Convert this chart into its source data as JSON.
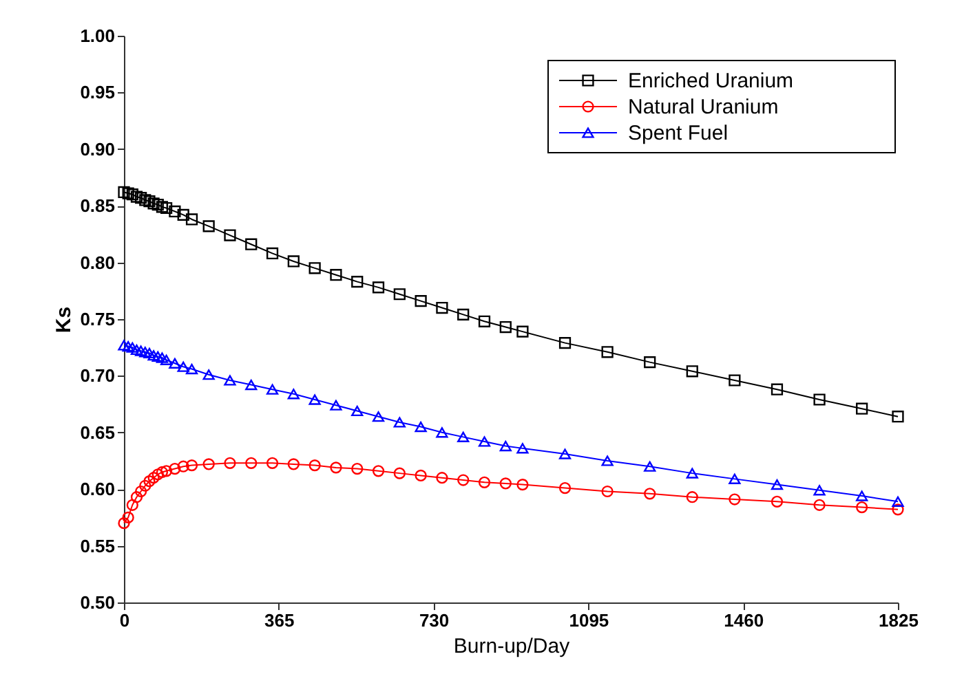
{
  "chart_data": {
    "type": "line",
    "xlabel": "Burn-up/Day",
    "ylabel": "Ks",
    "x": [
      0,
      10,
      20,
      30,
      40,
      50,
      60,
      70,
      80,
      90,
      100,
      120,
      140,
      160,
      200,
      250,
      300,
      350,
      400,
      450,
      500,
      550,
      600,
      650,
      700,
      750,
      800,
      850,
      900,
      940,
      1040,
      1140,
      1240,
      1340,
      1440,
      1540,
      1640,
      1740,
      1825
    ],
    "series": [
      {
        "name": "Enriched Uranium",
        "color": "#000000",
        "marker": "square",
        "values": [
          0.862,
          0.861,
          0.86,
          0.858,
          0.857,
          0.855,
          0.854,
          0.852,
          0.851,
          0.849,
          0.848,
          0.845,
          0.842,
          0.838,
          0.832,
          0.824,
          0.816,
          0.808,
          0.801,
          0.795,
          0.789,
          0.783,
          0.778,
          0.772,
          0.766,
          0.76,
          0.754,
          0.748,
          0.743,
          0.739,
          0.729,
          0.721,
          0.712,
          0.704,
          0.696,
          0.688,
          0.679,
          0.671,
          0.664
        ]
      },
      {
        "name": "Natural Uranium",
        "color": "#ff0000",
        "marker": "circle",
        "values": [
          0.57,
          0.575,
          0.586,
          0.593,
          0.598,
          0.603,
          0.607,
          0.61,
          0.613,
          0.615,
          0.616,
          0.618,
          0.62,
          0.621,
          0.622,
          0.623,
          0.623,
          0.623,
          0.622,
          0.621,
          0.619,
          0.618,
          0.616,
          0.614,
          0.612,
          0.61,
          0.608,
          0.606,
          0.605,
          0.604,
          0.601,
          0.598,
          0.596,
          0.593,
          0.591,
          0.589,
          0.586,
          0.584,
          0.582
        ]
      },
      {
        "name": "Spent Fuel",
        "color": "#0000ff",
        "marker": "triangle",
        "values": [
          0.727,
          0.726,
          0.725,
          0.723,
          0.722,
          0.721,
          0.72,
          0.718,
          0.717,
          0.716,
          0.714,
          0.711,
          0.708,
          0.706,
          0.701,
          0.696,
          0.692,
          0.688,
          0.684,
          0.679,
          0.674,
          0.669,
          0.664,
          0.659,
          0.655,
          0.65,
          0.646,
          0.642,
          0.638,
          0.636,
          0.631,
          0.625,
          0.62,
          0.614,
          0.609,
          0.604,
          0.599,
          0.594,
          0.589
        ]
      }
    ],
    "xlim": [
      0,
      1825
    ],
    "xticks": [
      0,
      365,
      730,
      1095,
      1460,
      1825
    ],
    "ylim": [
      0.5,
      1.0
    ],
    "yticks": [
      {
        "value": 0.5,
        "label": "0.50"
      },
      0.55,
      {
        "value": 0.6,
        "label": "0.60"
      },
      0.65,
      {
        "value": 0.7,
        "label": "0.70"
      },
      0.75,
      {
        "value": 0.8,
        "label": "0.80"
      },
      0.85,
      {
        "value": 0.9,
        "label": "0.90"
      },
      0.95,
      {
        "value": 1.0,
        "label": "1.00"
      }
    ],
    "grid": false,
    "legend": "top right",
    "line_style": "solid"
  }
}
